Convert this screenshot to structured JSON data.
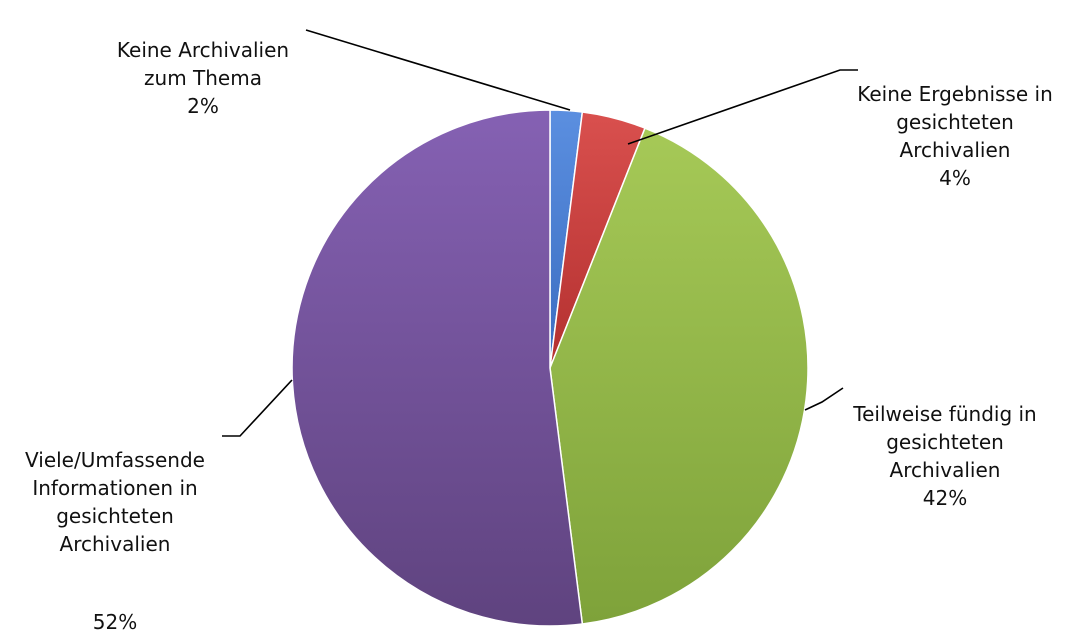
{
  "chart_data": {
    "type": "pie",
    "slices": [
      {
        "label": "Keine Archivalien\nzum Thema",
        "value": 2,
        "value_label": "2%",
        "color": "#4a7ecf"
      },
      {
        "label": "Keine Ergebnisse in\ngesichteten\nArchivalien",
        "value": 4,
        "value_label": "4%",
        "color": "#c9403f"
      },
      {
        "label": "Teilweise fündig in\ngesichteten\nArchivalien",
        "value": 42,
        "value_label": "42%",
        "color": "#97bd4a"
      },
      {
        "label": "Viele/Umfassende\nInformationen in\ngesichteten\nArchivalien",
        "value": 52,
        "value_label": "52%",
        "color": "#7a5aa5"
      }
    ],
    "legend": "none"
  }
}
